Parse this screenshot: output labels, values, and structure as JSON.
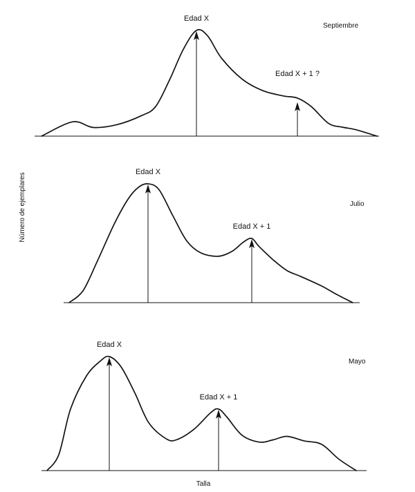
{
  "chart_data": [
    {
      "type": "line",
      "title": "Septiembre",
      "peaks": [
        {
          "label": "Edad X",
          "x": 28.4
        },
        {
          "label": "Edad X + 1 ?",
          "x": 43.0
        }
      ],
      "points": [
        [
          6.0,
          0
        ],
        [
          10.5,
          0.135
        ],
        [
          13.5,
          0.082
        ],
        [
          17.0,
          0.11
        ],
        [
          20.5,
          0.195
        ],
        [
          22.5,
          0.28
        ],
        [
          24.5,
          0.53
        ],
        [
          26.5,
          0.82
        ],
        [
          28.4,
          1.0
        ],
        [
          30.0,
          0.95
        ],
        [
          32.0,
          0.74
        ],
        [
          35.0,
          0.54
        ],
        [
          38.0,
          0.43
        ],
        [
          41.0,
          0.38
        ],
        [
          43.0,
          0.36
        ],
        [
          45.0,
          0.28
        ],
        [
          47.5,
          0.12
        ],
        [
          49.5,
          0.085
        ],
        [
          51.5,
          0.06
        ],
        [
          54.5,
          0
        ]
      ]
    },
    {
      "type": "line",
      "title": "Julio",
      "peaks": [
        {
          "label": "Edad X",
          "x": 21.4
        },
        {
          "label": "Edad X + 1",
          "x": 36.4
        }
      ],
      "points": [
        [
          10.0,
          0
        ],
        [
          12.0,
          0.1
        ],
        [
          14.0,
          0.34
        ],
        [
          16.5,
          0.66
        ],
        [
          18.5,
          0.87
        ],
        [
          20.0,
          0.97
        ],
        [
          21.4,
          1.0
        ],
        [
          23.0,
          0.95
        ],
        [
          25.0,
          0.73
        ],
        [
          27.0,
          0.52
        ],
        [
          29.0,
          0.42
        ],
        [
          31.5,
          0.39
        ],
        [
          33.5,
          0.43
        ],
        [
          35.2,
          0.51
        ],
        [
          36.4,
          0.54
        ],
        [
          37.5,
          0.47
        ],
        [
          39.5,
          0.36
        ],
        [
          41.5,
          0.27
        ],
        [
          43.5,
          0.22
        ],
        [
          46.5,
          0.14
        ],
        [
          48.5,
          0.075
        ],
        [
          51.0,
          0
        ]
      ]
    },
    {
      "type": "line",
      "title": "Mayo",
      "peaks": [
        {
          "label": "Edad X",
          "x": 15.8
        },
        {
          "label": "Edad X + 1",
          "x": 31.6
        }
      ],
      "points": [
        [
          6.8,
          0
        ],
        [
          8.5,
          0.14
        ],
        [
          10.2,
          0.54
        ],
        [
          12.5,
          0.83
        ],
        [
          14.5,
          0.96
        ],
        [
          15.8,
          1.0
        ],
        [
          17.5,
          0.91
        ],
        [
          19.5,
          0.68
        ],
        [
          21.5,
          0.42
        ],
        [
          24.0,
          0.28
        ],
        [
          25.5,
          0.27
        ],
        [
          28.0,
          0.36
        ],
        [
          30.5,
          0.51
        ],
        [
          31.6,
          0.54
        ],
        [
          32.8,
          0.47
        ],
        [
          35.0,
          0.31
        ],
        [
          37.5,
          0.25
        ],
        [
          39.5,
          0.27
        ],
        [
          41.5,
          0.3
        ],
        [
          44.0,
          0.26
        ],
        [
          46.5,
          0.23
        ],
        [
          49.0,
          0.1
        ],
        [
          51.5,
          0
        ]
      ]
    }
  ],
  "labels": {
    "xlabel": "Talla",
    "ylabel": "Número de ejemplares"
  }
}
